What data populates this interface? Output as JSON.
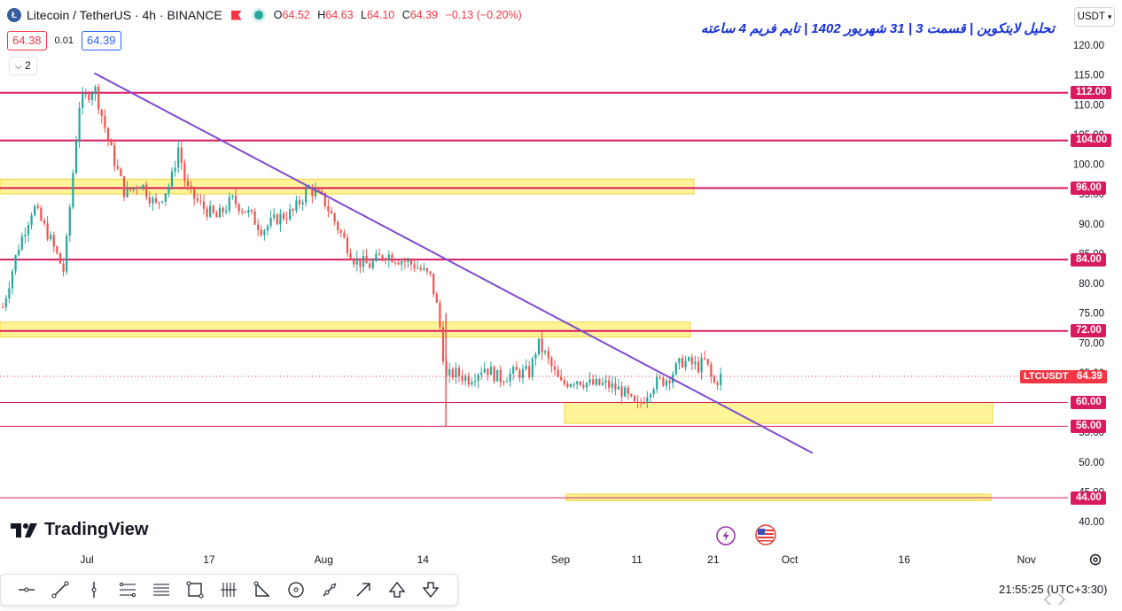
{
  "header": {
    "symbol": "Litecoin / TetherUS · 4h · BINANCE",
    "ohlc": {
      "o_label": "O",
      "o": "64.52",
      "h_label": "H",
      "h": "64.63",
      "l_label": "L",
      "l": "64.10",
      "c_label": "C",
      "c": "64.39",
      "change": "−0.13 (−0.20%)"
    },
    "sell_price": "64.38",
    "spread": "0.01",
    "buy_price": "64.39",
    "indicators_count": "2"
  },
  "title": "تحلیل لایتکوین | قسمت 3 | 31 شهریور 1402 | تایم فریم 4 ساعته",
  "currency": "USDT",
  "branding": "TradingView",
  "clock": "21:55:25 (UTC+3:30)",
  "colors": {
    "up": "#26a69a",
    "down": "#ef5350",
    "level": "#d81b60",
    "trend": "#7e4ad0",
    "zone": "#fff176",
    "last": "#f23645"
  },
  "chart_data": {
    "type": "candlestick",
    "symbol": "LTCUSDT",
    "timeframe": "4h",
    "yaxis": {
      "min": 40,
      "max": 120,
      "ticks": [
        "120.00",
        "115.00",
        "110.00",
        "105.00",
        "100.00",
        "95.00",
        "90.00",
        "85.00",
        "80.00",
        "75.00",
        "70.00",
        "65.00",
        "60.00",
        "55.00",
        "50.00",
        "45.00",
        "40.00"
      ]
    },
    "xaxis": {
      "ticks": [
        "Jul",
        "17",
        "Aug",
        "14",
        "Sep",
        "11",
        "21",
        "Oct",
        "16",
        "Nov"
      ]
    },
    "last_price": {
      "label": "LTCUSDT",
      "value": "64.39"
    },
    "levels": [
      {
        "value": 112,
        "label": "112.00"
      },
      {
        "value": 104,
        "label": "104.00"
      },
      {
        "value": 96,
        "label": "96.00"
      },
      {
        "value": 84,
        "label": "84.00"
      },
      {
        "value": 72,
        "label": "72.00"
      },
      {
        "value": 60,
        "label": "60.00"
      },
      {
        "value": 56,
        "label": "56.00"
      },
      {
        "value": 44,
        "label": "44.00"
      }
    ],
    "zones": [
      {
        "low": 95,
        "high": 97.5
      },
      {
        "low": 71,
        "high": 73.5
      },
      {
        "low": 56.5,
        "high": 60
      },
      {
        "low": 43.5,
        "high": 44.6
      }
    ],
    "trendline": {
      "start": [
        "Jun 30",
        115.3
      ],
      "end": [
        "Oct 4",
        51.5
      ]
    },
    "price_path": [
      [
        "Jun 20",
        76
      ],
      [
        "Jun 22",
        86
      ],
      [
        "Jun 24",
        93
      ],
      [
        "Jun 26",
        88
      ],
      [
        "Jun 28",
        82
      ],
      [
        "Jun 29",
        96
      ],
      [
        "Jun 30",
        110
      ],
      [
        "Jul 2",
        113
      ],
      [
        "Jul 4",
        103
      ],
      [
        "Jul 6",
        95
      ],
      [
        "Jul 8",
        97
      ],
      [
        "Jul 10",
        93
      ],
      [
        "Jul 12",
        97
      ],
      [
        "Jul 13",
        103
      ],
      [
        "Jul 14",
        96
      ],
      [
        "Jul 16",
        93
      ],
      [
        "Jul 18",
        91
      ],
      [
        "Jul 20",
        94
      ],
      [
        "Jul 22",
        92
      ],
      [
        "Jul 24",
        89
      ],
      [
        "Jul 26",
        91
      ],
      [
        "Jul 28",
        92
      ],
      [
        "Jul 30",
        96
      ],
      [
        "Aug 1",
        94
      ],
      [
        "Aug 3",
        89
      ],
      [
        "Aug 5",
        84
      ],
      [
        "Aug 7",
        83
      ],
      [
        "Aug 9",
        85
      ],
      [
        "Aug 11",
        84
      ],
      [
        "Aug 13",
        83
      ],
      [
        "Aug 15",
        81
      ],
      [
        "Aug 16",
        75
      ],
      [
        "Aug 17",
        64
      ],
      [
        "Aug 18",
        65
      ],
      [
        "Aug 20",
        64
      ],
      [
        "Aug 22",
        66
      ],
      [
        "Aug 24",
        64
      ],
      [
        "Aug 26",
        65
      ],
      [
        "Aug 28",
        65
      ],
      [
        "Aug 29",
        70
      ],
      [
        "Aug 30",
        68
      ],
      [
        "Sep 1",
        63
      ],
      [
        "Sep 3",
        64
      ],
      [
        "Sep 5",
        63
      ],
      [
        "Sep 7",
        63
      ],
      [
        "Sep 9",
        62
      ],
      [
        "Sep 11",
        59
      ],
      [
        "Sep 13",
        63
      ],
      [
        "Sep 15",
        64
      ],
      [
        "Sep 17",
        67
      ],
      [
        "Sep 19",
        66
      ],
      [
        "Sep 20",
        67
      ],
      [
        "Sep 21",
        63
      ],
      [
        "Sep 22",
        64.4
      ]
    ]
  }
}
